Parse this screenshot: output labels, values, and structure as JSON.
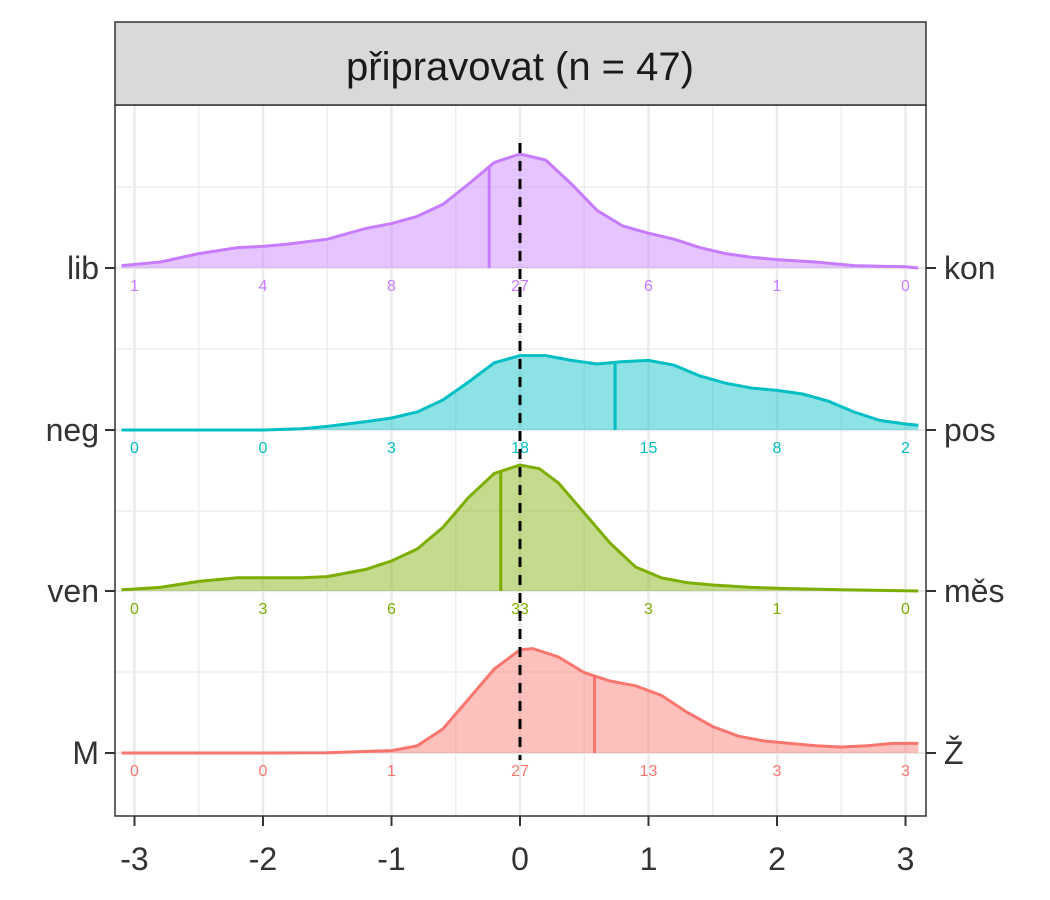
{
  "chart_data": {
    "type": "ridgeline",
    "title": "připravovat (n = 47)",
    "xlabel": "",
    "ylabel": "",
    "xlim": [
      -3.1,
      3.1
    ],
    "x_ticks": [
      -3,
      -2,
      -1,
      0,
      1,
      2,
      3
    ],
    "x_tick_labels": [
      "-3",
      "-2",
      "-1",
      "0",
      "1",
      "2",
      "3"
    ],
    "reference_line_x": 0,
    "grid": true,
    "count_positions": [
      -3,
      -2,
      -1,
      0,
      1,
      2,
      3
    ],
    "series": [
      {
        "label_left": "M",
        "label_right": "Ž",
        "color": "#F8766D",
        "fill": "#F8766D",
        "mean": 0.58,
        "counts": [
          "0",
          "0",
          "1",
          "27",
          "13",
          "3",
          "3"
        ],
        "density": [
          [
            -3.1,
            0
          ],
          [
            -2.5,
            0
          ],
          [
            -2,
            0
          ],
          [
            -1.5,
            0.002
          ],
          [
            -1,
            0.02
          ],
          [
            -0.8,
            0.06
          ],
          [
            -0.6,
            0.2
          ],
          [
            -0.4,
            0.45
          ],
          [
            -0.2,
            0.7
          ],
          [
            0,
            0.86
          ],
          [
            0.1,
            0.87
          ],
          [
            0.3,
            0.8
          ],
          [
            0.5,
            0.67
          ],
          [
            0.7,
            0.6
          ],
          [
            0.9,
            0.56
          ],
          [
            1.1,
            0.48
          ],
          [
            1.3,
            0.34
          ],
          [
            1.5,
            0.22
          ],
          [
            1.7,
            0.14
          ],
          [
            1.9,
            0.1
          ],
          [
            2.1,
            0.08
          ],
          [
            2.3,
            0.06
          ],
          [
            2.5,
            0.05
          ],
          [
            2.7,
            0.06
          ],
          [
            2.9,
            0.08
          ],
          [
            3.1,
            0.08
          ]
        ]
      },
      {
        "label_left": "ven",
        "label_right": "měs",
        "color": "#7CAE00",
        "fill": "#7CAE00",
        "mean": -0.15,
        "counts": [
          "0",
          "3",
          "6",
          "33",
          "3",
          "1",
          "0"
        ],
        "density": [
          [
            -3.1,
            0.01
          ],
          [
            -2.8,
            0.03
          ],
          [
            -2.5,
            0.08
          ],
          [
            -2.2,
            0.11
          ],
          [
            -2,
            0.11
          ],
          [
            -1.7,
            0.11
          ],
          [
            -1.5,
            0.12
          ],
          [
            -1.2,
            0.18
          ],
          [
            -1,
            0.25
          ],
          [
            -0.8,
            0.35
          ],
          [
            -0.6,
            0.53
          ],
          [
            -0.4,
            0.78
          ],
          [
            -0.2,
            0.98
          ],
          [
            0,
            1.05
          ],
          [
            0.15,
            1.02
          ],
          [
            0.3,
            0.9
          ],
          [
            0.5,
            0.65
          ],
          [
            0.7,
            0.4
          ],
          [
            0.9,
            0.2
          ],
          [
            1.1,
            0.11
          ],
          [
            1.3,
            0.07
          ],
          [
            1.5,
            0.05
          ],
          [
            1.8,
            0.03
          ],
          [
            2.1,
            0.02
          ],
          [
            2.5,
            0.01
          ],
          [
            3.1,
            0
          ]
        ]
      },
      {
        "label_left": "neg",
        "label_right": "pos",
        "color": "#00BFC4",
        "fill": "#00BFC4",
        "mean": 0.74,
        "counts": [
          "0",
          "0",
          "3",
          "18",
          "15",
          "8",
          "2"
        ],
        "density": [
          [
            -3.1,
            0
          ],
          [
            -2.5,
            0
          ],
          [
            -2,
            0
          ],
          [
            -1.7,
            0.01
          ],
          [
            -1.5,
            0.03
          ],
          [
            -1.2,
            0.07
          ],
          [
            -1,
            0.1
          ],
          [
            -0.8,
            0.15
          ],
          [
            -0.6,
            0.25
          ],
          [
            -0.4,
            0.4
          ],
          [
            -0.2,
            0.56
          ],
          [
            0,
            0.62
          ],
          [
            0.2,
            0.62
          ],
          [
            0.4,
            0.58
          ],
          [
            0.6,
            0.55
          ],
          [
            0.8,
            0.57
          ],
          [
            1,
            0.58
          ],
          [
            1.2,
            0.54
          ],
          [
            1.4,
            0.45
          ],
          [
            1.6,
            0.39
          ],
          [
            1.8,
            0.35
          ],
          [
            2,
            0.33
          ],
          [
            2.2,
            0.3
          ],
          [
            2.4,
            0.24
          ],
          [
            2.6,
            0.15
          ],
          [
            2.8,
            0.08
          ],
          [
            3,
            0.05
          ],
          [
            3.1,
            0.04
          ]
        ]
      },
      {
        "label_left": "lib",
        "label_right": "kon",
        "color": "#C77CFF",
        "fill": "#C77CFF",
        "mean": -0.24,
        "counts": [
          "1",
          "4",
          "8",
          "27",
          "6",
          "1",
          "0"
        ],
        "density": [
          [
            -3.1,
            0.02
          ],
          [
            -2.8,
            0.05
          ],
          [
            -2.5,
            0.12
          ],
          [
            -2.2,
            0.17
          ],
          [
            -2,
            0.18
          ],
          [
            -1.8,
            0.2
          ],
          [
            -1.5,
            0.24
          ],
          [
            -1.2,
            0.33
          ],
          [
            -1,
            0.37
          ],
          [
            -0.8,
            0.43
          ],
          [
            -0.6,
            0.53
          ],
          [
            -0.4,
            0.7
          ],
          [
            -0.2,
            0.88
          ],
          [
            0,
            0.95
          ],
          [
            0.2,
            0.9
          ],
          [
            0.4,
            0.7
          ],
          [
            0.6,
            0.48
          ],
          [
            0.8,
            0.35
          ],
          [
            1,
            0.29
          ],
          [
            1.2,
            0.24
          ],
          [
            1.4,
            0.17
          ],
          [
            1.6,
            0.12
          ],
          [
            1.8,
            0.09
          ],
          [
            2,
            0.07
          ],
          [
            2.3,
            0.05
          ],
          [
            2.6,
            0.02
          ],
          [
            3,
            0.01
          ],
          [
            3.1,
            0
          ]
        ]
      }
    ]
  }
}
